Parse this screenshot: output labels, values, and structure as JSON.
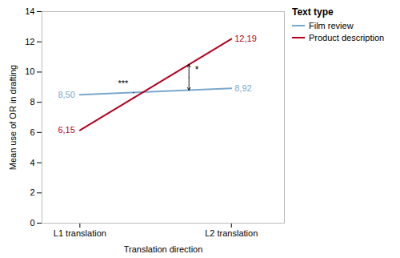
{
  "chart_data": {
    "type": "line",
    "categories": [
      "L1 translation",
      "L2 translation"
    ],
    "series": [
      {
        "name": "Film review",
        "color": "#7aa7cc",
        "values": [
          8.5,
          8.92
        ],
        "value_labels": [
          "8,50",
          "8,92"
        ]
      },
      {
        "name": "Product description",
        "color": "#b5001f",
        "values": [
          6.15,
          12.19
        ],
        "value_labels": [
          "6,15",
          "12,19"
        ]
      }
    ],
    "xlabel": "Translation direction",
    "ylabel": "Mean use of OR in drafting",
    "ylim": [
      0,
      14
    ],
    "yticks": [
      0,
      2,
      4,
      6,
      8,
      10,
      12,
      14
    ],
    "grid": false,
    "data_labels": true,
    "legend": "right",
    "legend_title": "Text type",
    "annotations": [
      "***",
      "*"
    ]
  }
}
